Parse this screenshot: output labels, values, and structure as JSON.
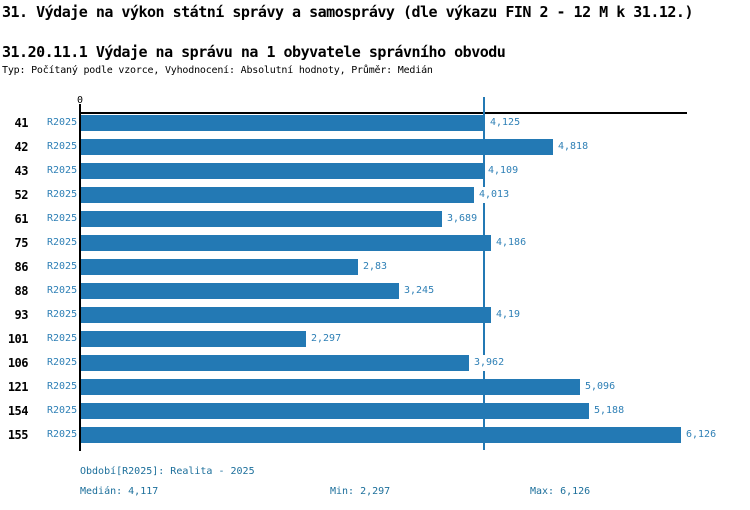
{
  "title": "31. Výdaje na výkon státní správy a samosprávy (dle výkazu FIN 2 - 12 M k 31.12.)",
  "subtitle": "31.20.11.1 Výdaje na správu na 1 obyvatele správního obvodu",
  "meta": "Typ: Počítaný podle vzorce, Vyhodnocení: Absolutní hodnoty, Průměr: Medián",
  "colors": {
    "bar": "#2379b4",
    "value_label": "#2f80b6",
    "footer_text": "#1c6f9b",
    "axis": "#000000"
  },
  "chart_data": {
    "type": "bar",
    "orientation": "horizontal",
    "series_label": "R2025",
    "categories": [
      "41",
      "42",
      "43",
      "52",
      "61",
      "75",
      "86",
      "88",
      "93",
      "101",
      "106",
      "121",
      "154",
      "155"
    ],
    "values": [
      4.125,
      4.818,
      4.109,
      4.013,
      3.689,
      4.186,
      2.83,
      3.245,
      4.19,
      2.297,
      3.962,
      5.096,
      5.188,
      6.126
    ],
    "value_labels": [
      "4,125",
      "4,818",
      "4,109",
      "4,013",
      "3,689",
      "4,186",
      "2,83",
      "3,245",
      "4,19",
      "2,297",
      "3,962",
      "5,096",
      "5,188",
      "6,126"
    ],
    "xlim": [
      0,
      6.2
    ],
    "zero_tick_label": "0",
    "median_line_value": 4.117,
    "grid": false,
    "legend": false
  },
  "footer": {
    "period": "Období[R2025]: Realita - 2025",
    "median": "Medián: 4,117",
    "min": "Min: 2,297",
    "max": "Max: 6,126"
  }
}
